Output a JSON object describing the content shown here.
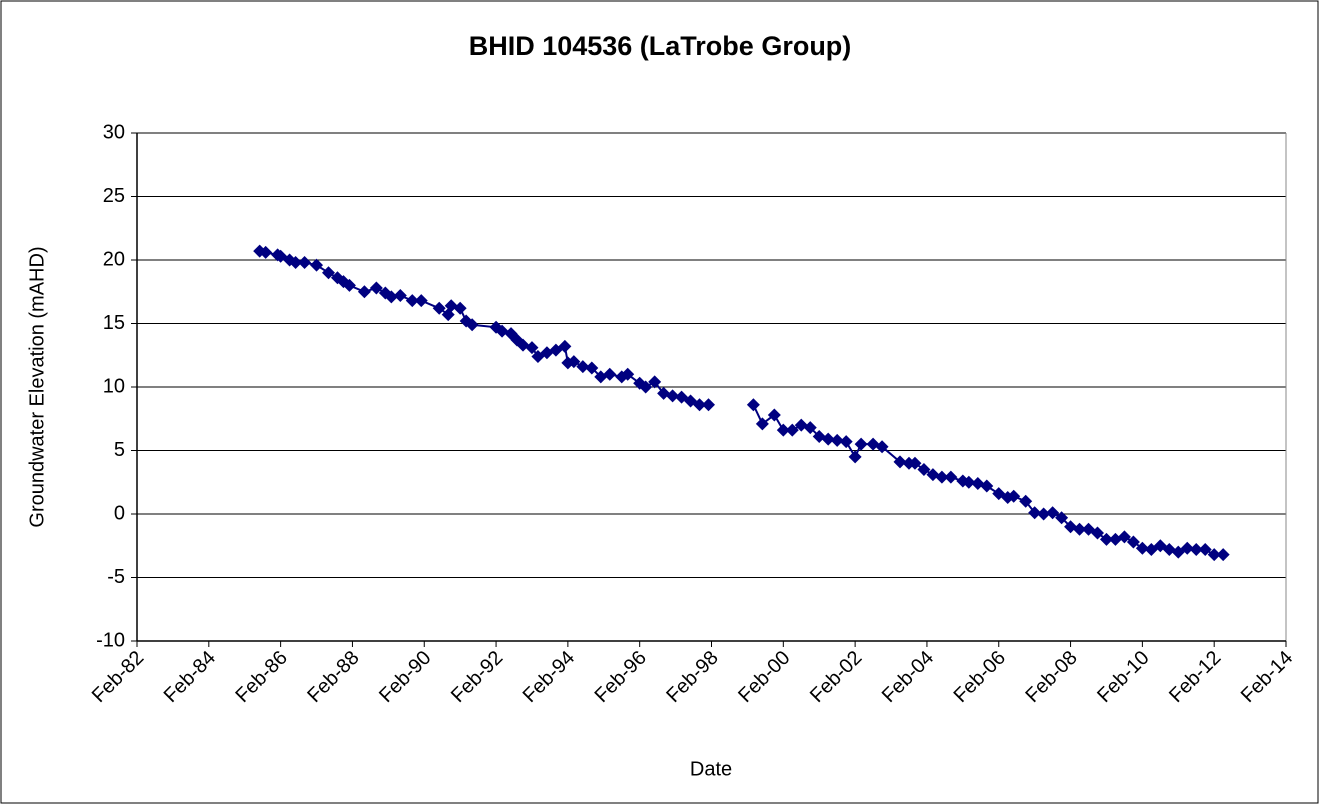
{
  "chart_data": {
    "type": "line",
    "marker": "diamond",
    "title": "BHID 104536 (LaTrobe Group)",
    "x_label": "Date",
    "y_label": "Groundwater Elevation  (mAHD)",
    "color": "#000080",
    "grid": true,
    "x": [
      "1985-07",
      "1985-09",
      "1986-01",
      "1986-02",
      "1986-05",
      "1986-07",
      "1986-10",
      "1987-02",
      "1987-06",
      "1987-09",
      "1987-11",
      "1988-01",
      "1988-06",
      "1988-10",
      "1989-01",
      "1989-03",
      "1989-06",
      "1989-10",
      "1990-01",
      "1990-07",
      "1990-10",
      "1990-11",
      "1991-02",
      "1991-04",
      "1991-06",
      "1992-02",
      "1992-04",
      "1992-07",
      "1992-09",
      "1992-11",
      "1993-02",
      "1993-04",
      "1993-07",
      "1993-10",
      "1994-01",
      "1994-02",
      "1994-04",
      "1994-07",
      "1994-10",
      "1995-01",
      "1995-04",
      "1995-08",
      "1995-10",
      "1996-02",
      "1996-04",
      "1996-07",
      "1996-10",
      "1997-01",
      "1997-04",
      "1997-07",
      "1997-10",
      "1998-01",
      null,
      "1999-04",
      "1999-07",
      "1999-11",
      "2000-02",
      "2000-05",
      "2000-08",
      "2000-11",
      "2001-02",
      "2001-05",
      "2001-08",
      "2001-11",
      "2002-02",
      "2002-04",
      "2002-08",
      "2002-11",
      "2003-05",
      "2003-08",
      "2003-10",
      "2004-01",
      "2004-04",
      "2004-07",
      "2004-10",
      "2005-02",
      "2005-04",
      "2005-07",
      "2005-10",
      "2006-02",
      "2006-05",
      "2006-07",
      "2006-11",
      "2007-02",
      "2007-05",
      "2007-08",
      "2007-11",
      "2008-02",
      "2008-05",
      "2008-08",
      "2008-11",
      "2009-02",
      "2009-05",
      "2009-08",
      "2009-11",
      "2010-02",
      "2010-05",
      "2010-08",
      "2010-11",
      "2011-02",
      "2011-05",
      "2011-08",
      "2011-11",
      "2012-02",
      "2012-05"
    ],
    "values": [
      20.7,
      20.6,
      20.4,
      20.3,
      20.0,
      19.8,
      19.8,
      19.6,
      19.0,
      18.6,
      18.3,
      18.0,
      17.5,
      17.8,
      17.4,
      17.1,
      17.2,
      16.8,
      16.8,
      16.2,
      15.7,
      16.4,
      16.2,
      15.2,
      14.9,
      14.7,
      14.4,
      14.2,
      13.7,
      13.3,
      13.1,
      12.4,
      12.7,
      12.9,
      13.2,
      11.9,
      12.0,
      11.6,
      11.5,
      10.8,
      11.0,
      10.8,
      11.0,
      10.3,
      10.0,
      10.4,
      9.5,
      9.3,
      9.2,
      8.9,
      8.6,
      8.6,
      null,
      8.6,
      7.1,
      7.8,
      6.6,
      6.6,
      7.0,
      6.8,
      6.1,
      5.9,
      5.8,
      5.7,
      4.5,
      5.5,
      5.5,
      5.3,
      4.1,
      4.0,
      4.0,
      3.5,
      3.1,
      2.9,
      2.9,
      2.6,
      2.5,
      2.4,
      2.2,
      1.6,
      1.3,
      1.4,
      1.0,
      0.1,
      0.0,
      0.1,
      -0.3,
      -1.0,
      -1.2,
      -1.2,
      -1.5,
      -2.0,
      -2.0,
      -1.8,
      -2.2,
      -2.7,
      -2.8,
      -2.5,
      -2.8,
      -3.0,
      -2.7,
      -2.8,
      -2.8,
      -3.2,
      -3.2
    ],
    "xlim": [
      "1982-02",
      "2014-02"
    ],
    "xticks": [
      {
        "value": "1982-02",
        "label": "Feb-82"
      },
      {
        "value": "1984-02",
        "label": "Feb-84"
      },
      {
        "value": "1986-02",
        "label": "Feb-86"
      },
      {
        "value": "1988-02",
        "label": "Feb-88"
      },
      {
        "value": "1990-02",
        "label": "Feb-90"
      },
      {
        "value": "1992-02",
        "label": "Feb-92"
      },
      {
        "value": "1994-02",
        "label": "Feb-94"
      },
      {
        "value": "1996-02",
        "label": "Feb-96"
      },
      {
        "value": "1998-02",
        "label": "Feb-98"
      },
      {
        "value": "2000-02",
        "label": "Feb-00"
      },
      {
        "value": "2002-02",
        "label": "Feb-02"
      },
      {
        "value": "2004-02",
        "label": "Feb-04"
      },
      {
        "value": "2006-02",
        "label": "Feb-06"
      },
      {
        "value": "2008-02",
        "label": "Feb-08"
      },
      {
        "value": "2010-02",
        "label": "Feb-10"
      },
      {
        "value": "2012-02",
        "label": "Feb-12"
      },
      {
        "value": "2014-02",
        "label": "Feb-14"
      }
    ],
    "ylim": [
      -10,
      30
    ],
    "yticks": [
      -10,
      -5,
      0,
      5,
      10,
      15,
      20,
      25,
      30
    ]
  }
}
